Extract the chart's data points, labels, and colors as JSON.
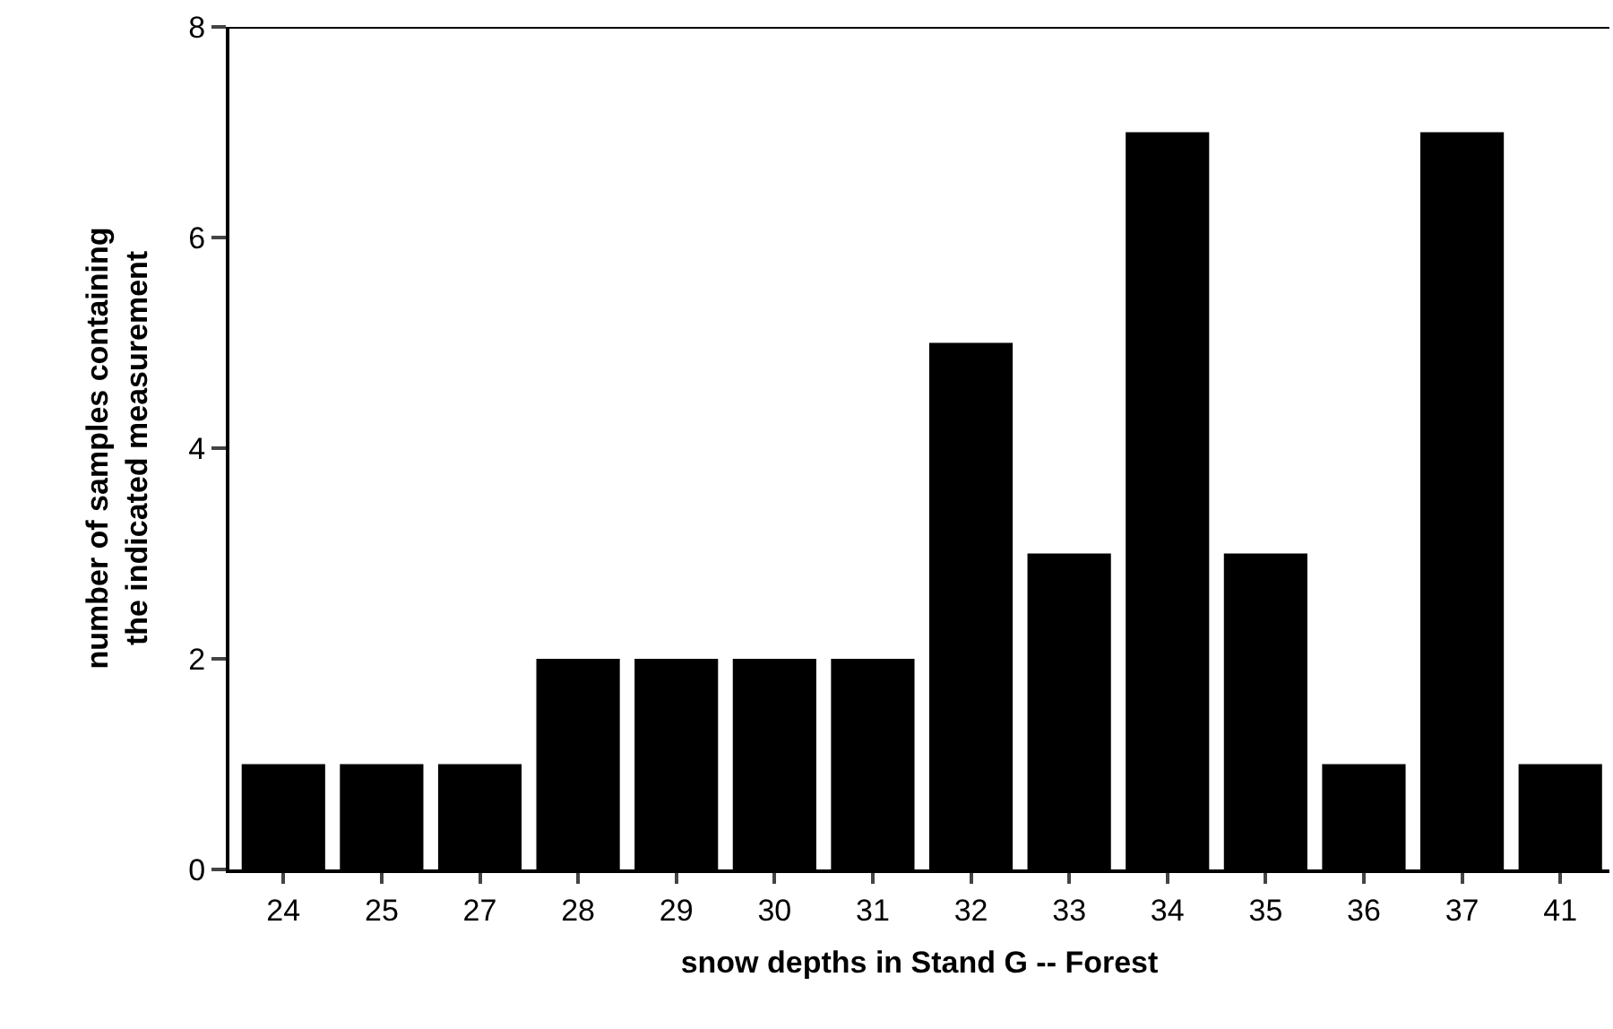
{
  "chart_data": {
    "type": "bar",
    "xlabel": "snow depths in Stand G -- Forest",
    "ylabel": "number of samples containing\nthe indicated measurement",
    "categories": [
      "24",
      "25",
      "27",
      "28",
      "29",
      "30",
      "31",
      "32",
      "33",
      "34",
      "35",
      "36",
      "37",
      "41"
    ],
    "values": [
      1,
      1,
      1,
      2,
      2,
      2,
      2,
      5,
      3,
      7,
      3,
      1,
      7,
      1
    ],
    "color": "#000000",
    "ylim": [
      0,
      8
    ],
    "yticks": [
      0,
      2,
      4,
      6,
      8
    ],
    "grid": false,
    "legend": false
  }
}
